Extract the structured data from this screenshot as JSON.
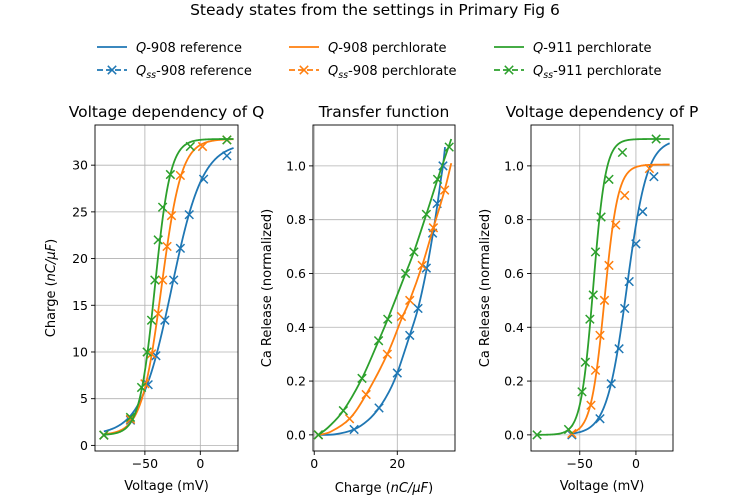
{
  "suptitle": "Steady states from the settings in Primary Fig 6",
  "legend": [
    {
      "prefix": "Q",
      "sub": "",
      "suffix": "-908 reference",
      "color": "#1f77b4",
      "style": "line"
    },
    {
      "prefix": "Q",
      "sub": "ss",
      "suffix": "-908 reference",
      "color": "#1f77b4",
      "style": "marker"
    },
    {
      "prefix": "Q",
      "sub": "",
      "suffix": "-908 perchlorate",
      "color": "#ff7f0e",
      "style": "line"
    },
    {
      "prefix": "Q",
      "sub": "ss",
      "suffix": "-908 perchlorate",
      "color": "#ff7f0e",
      "style": "marker"
    },
    {
      "prefix": "Q",
      "sub": "",
      "suffix": "-911 perchlorate",
      "color": "#2ca02c",
      "style": "line"
    },
    {
      "prefix": "Q",
      "sub": "ss",
      "suffix": "-911 perchlorate",
      "color": "#2ca02c",
      "style": "marker"
    }
  ],
  "chart_data": [
    {
      "type": "line",
      "title": "Voltage dependency of Q",
      "xlabel": "Voltage (mV)",
      "ylabel_pre": "Charge (",
      "ylabel_unit": "nC/μF",
      "ylabel_post": ")",
      "xlim": [
        -95,
        34
      ],
      "ylim": [
        -0.6,
        34.3
      ],
      "xticks": [
        {
          "v": -50,
          "label": "−50"
        },
        {
          "v": 0,
          "label": "0"
        }
      ],
      "yticks": [
        {
          "v": 0,
          "label": "0"
        },
        {
          "v": 5,
          "label": "5"
        },
        {
          "v": 10,
          "label": "10"
        },
        {
          "v": 15,
          "label": "15"
        },
        {
          "v": 20,
          "label": "20"
        },
        {
          "v": 25,
          "label": "25"
        },
        {
          "v": 30,
          "label": "30"
        }
      ],
      "grid": true,
      "series": [
        {
          "name": "908 reference",
          "color": "#1f77b4",
          "model": {
            "min": 1.1,
            "max": 32.4,
            "v_half": -26,
            "k": 14
          },
          "range": [
            -87,
            30
          ],
          "points": [
            [
              -87,
              1.1
            ],
            [
              -63,
              2.7
            ],
            [
              -47,
              6.5
            ],
            [
              -40,
              9.6
            ],
            [
              -32,
              13.4
            ],
            [
              -24,
              17.7
            ],
            [
              -18,
              21.1
            ],
            [
              -10,
              24.7
            ],
            [
              3,
              28.5
            ],
            [
              24,
              31.0
            ]
          ]
        },
        {
          "name": "908 perchlorate",
          "color": "#ff7f0e",
          "model": {
            "min": 1.1,
            "max": 32.8,
            "v_half": -35,
            "k": 9
          },
          "range": [
            -87,
            30
          ],
          "points": [
            [
              -87,
              1.1
            ],
            [
              -63,
              2.8
            ],
            [
              -50,
              6.6
            ],
            [
              -44,
              9.8
            ],
            [
              -38,
              14.1
            ],
            [
              -34,
              17.7
            ],
            [
              -30,
              21.3
            ],
            [
              -26,
              24.6
            ],
            [
              -18,
              28.9
            ],
            [
              2,
              32.0
            ],
            [
              24,
              32.7
            ]
          ]
        },
        {
          "name": "911 perchlorate",
          "color": "#2ca02c",
          "model": {
            "min": 1.1,
            "max": 32.8,
            "v_half": -41,
            "k": 7
          },
          "range": [
            -87,
            30
          ],
          "points": [
            [
              -87,
              1.1
            ],
            [
              -63,
              3.0
            ],
            [
              -53,
              6.2
            ],
            [
              -48,
              10.0
            ],
            [
              -44,
              13.4
            ],
            [
              -41,
              17.7
            ],
            [
              -38,
              22.0
            ],
            [
              -34,
              25.5
            ],
            [
              -27,
              29.0
            ],
            [
              -9,
              32.0
            ],
            [
              24,
              32.7
            ]
          ]
        }
      ]
    },
    {
      "type": "line",
      "title": "Transfer function",
      "xlabel_pre": "Charge (",
      "xlabel_unit": "nC/μF",
      "xlabel_post": ")",
      "ylabel": "Ca Release (normalized)",
      "xlim": [
        -0.3,
        33.9
      ],
      "ylim": [
        -0.06,
        1.152
      ],
      "xticks": [
        {
          "v": 0,
          "label": "0"
        },
        {
          "v": 20,
          "label": "20"
        }
      ],
      "yticks": [
        {
          "v": 0,
          "label": "0.0"
        },
        {
          "v": 0.2,
          "label": "0.2"
        },
        {
          "v": 0.4,
          "label": "0.4"
        },
        {
          "v": 0.6,
          "label": "0.6"
        },
        {
          "v": 0.8,
          "label": "0.8"
        },
        {
          "v": 1.0,
          "label": "1.0"
        }
      ],
      "grid": true,
      "series": [
        {
          "name": "908 reference",
          "color": "#1f77b4",
          "line": [
            [
              1,
              0
            ],
            [
              5,
              0.002
            ],
            [
              9.6,
              0.02
            ],
            [
              13,
              0.055
            ],
            [
              15.6,
              0.1
            ],
            [
              18,
              0.16
            ],
            [
              20,
              0.23
            ],
            [
              23,
              0.37
            ],
            [
              25,
              0.47
            ],
            [
              27,
              0.61
            ],
            [
              28.5,
              0.74
            ],
            [
              29.6,
              0.85
            ],
            [
              30.5,
              0.95
            ],
            [
              31,
              1.0
            ],
            [
              31.5,
              1.07
            ]
          ],
          "points": [
            [
              1,
              0
            ],
            [
              9.6,
              0.02
            ],
            [
              15.6,
              0.1
            ],
            [
              20,
              0.23
            ],
            [
              23,
              0.37
            ],
            [
              25,
              0.47
            ],
            [
              27,
              0.62
            ],
            [
              28.5,
              0.75
            ],
            [
              29.6,
              0.86
            ],
            [
              31,
              1.0
            ]
          ]
        },
        {
          "name": "908 perchlorate",
          "color": "#ff7f0e",
          "line": [
            [
              1,
              0
            ],
            [
              4,
              0.012
            ],
            [
              8.5,
              0.06
            ],
            [
              12.5,
              0.15
            ],
            [
              17.6,
              0.3
            ],
            [
              21,
              0.43
            ],
            [
              23,
              0.5
            ],
            [
              26,
              0.63
            ],
            [
              28.7,
              0.77
            ],
            [
              31.4,
              0.91
            ],
            [
              33,
              1.01
            ]
          ],
          "points": [
            [
              1,
              0
            ],
            [
              8.5,
              0.06
            ],
            [
              12.5,
              0.15
            ],
            [
              17.6,
              0.3
            ],
            [
              21,
              0.44
            ],
            [
              23,
              0.5
            ],
            [
              26,
              0.63
            ],
            [
              28.7,
              0.77
            ],
            [
              31.4,
              0.91
            ]
          ]
        },
        {
          "name": "911 perchlorate",
          "color": "#2ca02c",
          "line": [
            [
              1,
              0
            ],
            [
              3.5,
              0.03
            ],
            [
              7,
              0.09
            ],
            [
              11.5,
              0.21
            ],
            [
              15.5,
              0.35
            ],
            [
              17.7,
              0.43
            ],
            [
              22,
              0.6
            ],
            [
              24,
              0.68
            ],
            [
              27,
              0.82
            ],
            [
              29.7,
              0.95
            ],
            [
              33,
              1.1
            ]
          ],
          "points": [
            [
              1,
              0
            ],
            [
              7,
              0.09
            ],
            [
              11.5,
              0.21
            ],
            [
              15.5,
              0.35
            ],
            [
              17.7,
              0.43
            ],
            [
              22,
              0.6
            ],
            [
              24,
              0.68
            ],
            [
              27,
              0.82
            ],
            [
              29.7,
              0.95
            ],
            [
              32.5,
              1.07
            ]
          ]
        }
      ]
    },
    {
      "type": "line",
      "title": "Voltage dependency of P",
      "xlabel": "Voltage (mV)",
      "ylabel": "Ca Release (normalized)",
      "xlim": [
        -93.4,
        33
      ],
      "ylim": [
        -0.06,
        1.152
      ],
      "xticks": [
        {
          "v": -50,
          "label": "−50"
        },
        {
          "v": 0,
          "label": "0"
        }
      ],
      "yticks": [
        {
          "v": 0,
          "label": "0.0"
        },
        {
          "v": 0.2,
          "label": "0.2"
        },
        {
          "v": 0.4,
          "label": "0.4"
        },
        {
          "v": 0.6,
          "label": "0.6"
        },
        {
          "v": 0.8,
          "label": "0.8"
        },
        {
          "v": 1.0,
          "label": "1.0"
        }
      ],
      "grid": true,
      "series": [
        {
          "name": "908 reference",
          "color": "#1f77b4",
          "model": {
            "min": 0,
            "max": 1.1,
            "v_half": -8,
            "k": 9
          },
          "range": [
            -57,
            30
          ],
          "points": [
            [
              -57,
              0.0
            ],
            [
              -32,
              0.06
            ],
            [
              -22,
              0.19
            ],
            [
              -15,
              0.32
            ],
            [
              -10,
              0.47
            ],
            [
              -6,
              0.57
            ],
            [
              0,
              0.71
            ],
            [
              6,
              0.83
            ],
            [
              16,
              0.96
            ]
          ]
        },
        {
          "name": "908 perchlorate",
          "color": "#ff7f0e",
          "model": {
            "min": 0,
            "max": 1.005,
            "v_half": -28,
            "k": 6
          },
          "range": [
            -57,
            30
          ],
          "points": [
            [
              -57,
              0.005
            ],
            [
              -40,
              0.11
            ],
            [
              -36,
              0.24
            ],
            [
              -32,
              0.37
            ],
            [
              -28,
              0.5
            ],
            [
              -24,
              0.63
            ],
            [
              -18,
              0.78
            ],
            [
              -10,
              0.89
            ],
            [
              12,
              0.99
            ]
          ]
        },
        {
          "name": "911 perchlorate",
          "color": "#2ca02c",
          "model": {
            "min": 0,
            "max": 1.1,
            "v_half": -38,
            "k": 5.5
          },
          "range": [
            -88,
            30
          ],
          "points": [
            [
              -88,
              0.0
            ],
            [
              -60,
              0.02
            ],
            [
              -48,
              0.16
            ],
            [
              -45,
              0.27
            ],
            [
              -41,
              0.43
            ],
            [
              -38,
              0.52
            ],
            [
              -36,
              0.68
            ],
            [
              -31,
              0.81
            ],
            [
              -24,
              0.95
            ],
            [
              -12,
              1.05
            ],
            [
              18,
              1.1
            ]
          ]
        }
      ]
    }
  ]
}
